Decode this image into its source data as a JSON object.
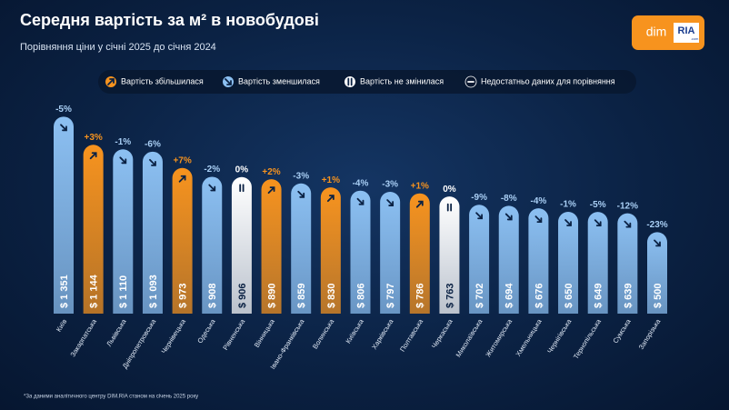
{
  "chart_data": {
    "type": "bar",
    "title": "Середня вартість за м² в новобудові",
    "subtitle": "Порівняння ціни у січні 2025 до січня 2024",
    "logo": {
      "left": "dim",
      "right": "RIA",
      "suffix": ".com"
    },
    "legend": [
      "Вартість збільшилася",
      "Вартість зменшилася",
      "Вартість не змінилася",
      "Недостатньо даних для порівняння"
    ],
    "legend_colors": [
      "#f7931e",
      "#8cc0f2",
      "#ffffff",
      "#0a1830"
    ],
    "categories": [
      "Київ",
      "Закарпатська",
      "Львівська",
      "Дніпропетровська",
      "Чернівецька",
      "Одеська",
      "Рівненська",
      "Вінницька",
      "Івано-Франківська",
      "Волинська",
      "Київська",
      "Харківська",
      "Полтавська",
      "Черкаська",
      "Миколаївська",
      "Житомирська",
      "Хмельницька",
      "Чернігівська",
      "Тернопільська",
      "Сумська",
      "Запорізька"
    ],
    "values": [
      1351,
      1144,
      1110,
      1093,
      973,
      908,
      906,
      890,
      859,
      830,
      806,
      797,
      786,
      763,
      702,
      694,
      676,
      650,
      649,
      639,
      500
    ],
    "value_labels": [
      "$ 1 351",
      "$ 1 144",
      "$ 1 110",
      "$ 1 093",
      "$ 973",
      "$ 908",
      "$ 906",
      "$ 890",
      "$ 859",
      "$ 830",
      "$ 806",
      "$ 797",
      "$ 786",
      "$ 763",
      "$ 702",
      "$ 694",
      "$ 676",
      "$ 650",
      "$ 649",
      "$ 639",
      "$ 500"
    ],
    "changes": [
      -5,
      3,
      -1,
      -6,
      7,
      -2,
      0,
      2,
      -3,
      1,
      -4,
      -3,
      1,
      0,
      -9,
      -8,
      -4,
      -1,
      -5,
      -12,
      -23
    ],
    "change_labels": [
      "-5%",
      "+3%",
      "-1%",
      "-6%",
      "+7%",
      "-2%",
      "0%",
      "+2%",
      "-3%",
      "+1%",
      "-4%",
      "-3%",
      "+1%",
      "0%",
      "-9%",
      "-8%",
      "-4%",
      "-1%",
      "-5%",
      "-12%",
      "-23%"
    ],
    "ylim": [
      -100,
      1400
    ],
    "footnote": "*За даними аналітичного центру DIM.RIA станом на січень 2025 року"
  }
}
